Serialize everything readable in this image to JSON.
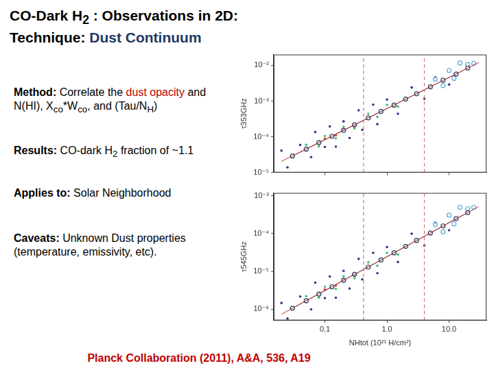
{
  "slide": {
    "title": [
      [
        {
          "text": "CO-Dark H"
        },
        {
          "text": "2",
          "sub": true
        },
        {
          "text": " : Observations in 2D:"
        }
      ],
      [
        {
          "text": "Technique: "
        },
        {
          "text": "Dust Continuum",
          "color": "#1f3864"
        }
      ]
    ],
    "items": [
      {
        "label": "Method:",
        "parts": [
          {
            "text": " Correlate the "
          },
          {
            "text": "dust opacity",
            "color": "#c00000"
          },
          {
            "text": " and N(HI), X"
          },
          {
            "text": "co",
            "sub": true
          },
          {
            "text": "*W"
          },
          {
            "text": "co",
            "sub": true
          },
          {
            "text": ", and (Tau/N"
          },
          {
            "text": "H",
            "sub": true
          },
          {
            "text": ")"
          }
        ]
      },
      {
        "label": "Results:",
        "parts": [
          {
            "text": " CO-dark H"
          },
          {
            "text": "2",
            "sub": true
          },
          {
            "text": " fraction of ~1.1"
          }
        ]
      },
      {
        "label": "Applies to:",
        "parts": [
          {
            "text": " Solar Neighborhood"
          }
        ]
      },
      {
        "label": "Caveats:",
        "parts": [
          {
            "text": " Unknown Dust properties (temperature, emissivity, etc)."
          }
        ]
      }
    ],
    "reference": "Planck Collaboration (2011), A&A, 536, A19"
  },
  "chart_data": [
    {
      "type": "scatter",
      "y_label": "τ353GHz",
      "log": true,
      "grid": false,
      "tick_labels": "y",
      "xlim": [
        0.015,
        40
      ],
      "xticks": [
        0.1,
        1,
        10
      ],
      "ylim": [
        1e-05,
        0.02
      ],
      "yticks": [
        {
          "value": 1e-05,
          "label": "10⁻⁵"
        },
        {
          "value": 0.0001,
          "label": "10⁻⁴"
        },
        {
          "value": 0.001,
          "label": "10⁻³"
        },
        {
          "value": 0.01,
          "label": "10⁻²"
        }
      ],
      "series": [
        {
          "color": "#3d2f8a",
          "marker": "dot",
          "x": [
            0.02,
            0.025,
            0.04,
            0.06,
            0.07,
            0.1,
            0.12,
            0.15,
            0.2,
            0.25,
            0.35,
            0.4,
            0.6,
            0.7,
            1.0,
            1.5,
            2.5,
            4,
            6,
            10
          ],
          "values": [
            4.1e-05,
            1.4e-05,
            5.9e-05,
            2.7e-05,
            0.000136,
            5.2e-05,
            0.000195,
            5.3e-05,
            0.00027,
            9.2e-05,
            0.00055,
            0.000156,
            0.00079,
            0.000226,
            0.0011,
            0.00044,
            0.0024,
            0.00116,
            0.0046,
            0.0029
          ]
        },
        {
          "color": "#3fbf6a",
          "marker": "dot",
          "x": [
            0.05,
            0.08,
            0.1,
            0.15,
            0.2,
            0.3,
            0.5,
            0.7,
            1.0,
            1.5
          ],
          "values": [
            6e-05,
            5.4e-05,
            0.000105,
            9e-05,
            0.000191,
            0.000172,
            0.00044,
            0.00036,
            0.00078,
            0.0007
          ]
        },
        {
          "color": "#e23a22",
          "marker": "dot",
          "x": [
            0.1,
            0.15,
            0.2,
            0.3
          ],
          "values": [
            8.8e-05,
            0.00011,
            0.00016,
            0.0002
          ]
        },
        {
          "color": "#56a8d8",
          "marker": "circle",
          "x": [
            6,
            8,
            10,
            12,
            15,
            20,
            25
          ],
          "values": [
            0.0041,
            0.0027,
            0.0072,
            0.0043,
            0.0116,
            0.0105,
            0.0114
          ]
        },
        {
          "color": "#1a3a5a",
          "marker": "circle",
          "line_style": "solid",
          "x": [
            0.03,
            0.05,
            0.08,
            0.13,
            0.2,
            0.3,
            0.5,
            0.8,
            1.3,
            2,
            3,
            5,
            8,
            13,
            20
          ],
          "values": [
            2.9e-05,
            4.5e-05,
            6.9e-05,
            0.000104,
            0.000152,
            0.000216,
            0.000337,
            0.00051,
            0.00077,
            0.00113,
            0.0016,
            0.0025,
            0.0038,
            0.0057,
            0.0084
          ]
        },
        {
          "color": "#c03030",
          "line_style": "solid",
          "x": [
            0.02,
            30
          ],
          "values": [
            2.05e-05,
            0.0119
          ]
        },
        {
          "color": "#d07070",
          "line_style": "dashed",
          "x": [
            0.42,
            0.42
          ],
          "values": [
            1e-05,
            0.02
          ]
        },
        {
          "color": "#d07070",
          "line_style": "dashed",
          "x": [
            4,
            4
          ],
          "values": [
            1e-05,
            0.02
          ]
        }
      ]
    },
    {
      "type": "scatter",
      "y_label": "τ545GHz",
      "x_label": "NHtot (10²¹ H/cm²)",
      "log": true,
      "grid": false,
      "xlim": [
        0.015,
        40
      ],
      "xticks": [
        0.1,
        {
          "value": 1,
          "label": "1.0"
        },
        {
          "value": 10,
          "label": "10.0"
        }
      ],
      "ylim": [
        5e-07,
        0.0012
      ],
      "yticks": [
        {
          "value": 1e-06,
          "label": "10⁻⁶"
        },
        {
          "value": 1e-05,
          "label": "10⁻⁵"
        },
        {
          "value": 0.0001,
          "label": "10⁻⁴"
        },
        {
          "value": 0.001,
          "label": "10⁻³"
        }
      ],
      "series": [
        {
          "color": "#3d2f8a",
          "marker": "dot",
          "x": [
            0.02,
            0.025,
            0.04,
            0.06,
            0.07,
            0.1,
            0.12,
            0.15,
            0.2,
            0.25,
            0.35,
            0.4,
            0.6,
            0.7,
            1.0,
            1.5,
            2.5,
            4,
            6,
            10
          ],
          "values": [
            1.45e-06,
            5.6e-07,
            2.15e-06,
            9.8e-07,
            5e-06,
            1.95e-06,
            7.3e-06,
            2e-06,
            1.03e-05,
            3.5e-06,
            2.14e-05,
            6.1e-06,
            3.1e-05,
            8.9e-06,
            4.4e-05,
            1.77e-05,
            9.95e-05,
            4.8e-05,
            0.000195,
            0.000123
          ]
        },
        {
          "color": "#3fbf6a",
          "marker": "dot",
          "x": [
            0.05,
            0.08,
            0.1,
            0.15,
            0.2,
            0.3,
            0.5,
            0.7,
            1.0,
            1.5
          ],
          "values": [
            2.2e-06,
            2e-06,
            3.9e-06,
            3.4e-06,
            7.3e-06,
            6.6e-06,
            1.73e-05,
            1.41e-05,
            3.1e-05,
            2.8e-05
          ]
        },
        {
          "color": "#e23a22",
          "marker": "dot",
          "x": [
            0.1,
            0.15,
            0.2,
            0.3
          ],
          "values": [
            3.3e-06,
            4.2e-06,
            6.1e-06,
            7.9e-06
          ]
        },
        {
          "color": "#56a8d8",
          "marker": "circle",
          "x": [
            6,
            8,
            10,
            12,
            15,
            20,
            25
          ],
          "values": [
            0.000174,
            0.000113,
            0.00031,
            0.000182,
            0.0005,
            0.00046,
            0.0005
          ]
        },
        {
          "color": "#1a3a5a",
          "marker": "circle",
          "line_style": "solid",
          "x": [
            0.03,
            0.05,
            0.08,
            0.13,
            0.2,
            0.3,
            0.5,
            0.8,
            1.3,
            2,
            3,
            5,
            8,
            13,
            20
          ],
          "values": [
            1.05e-06,
            1.66e-06,
            2.5e-06,
            3.9e-06,
            5.8e-06,
            8.3e-06,
            1.3e-05,
            2e-05,
            3.1e-05,
            4.6e-05,
            6.6e-05,
            0.000104,
            0.00016,
            0.00025,
            0.00036
          ]
        },
        {
          "color": "#c03030",
          "line_style": "solid",
          "x": [
            0.02,
            30
          ],
          "values": [
            7.3e-07,
            0.00052
          ]
        },
        {
          "color": "#d07070",
          "line_style": "dashed",
          "x": [
            0.42,
            0.42
          ],
          "values": [
            5e-07,
            0.0012
          ]
        },
        {
          "color": "#d07070",
          "line_style": "dashed",
          "x": [
            4,
            4
          ],
          "values": [
            5e-07,
            0.0012
          ]
        }
      ]
    }
  ]
}
